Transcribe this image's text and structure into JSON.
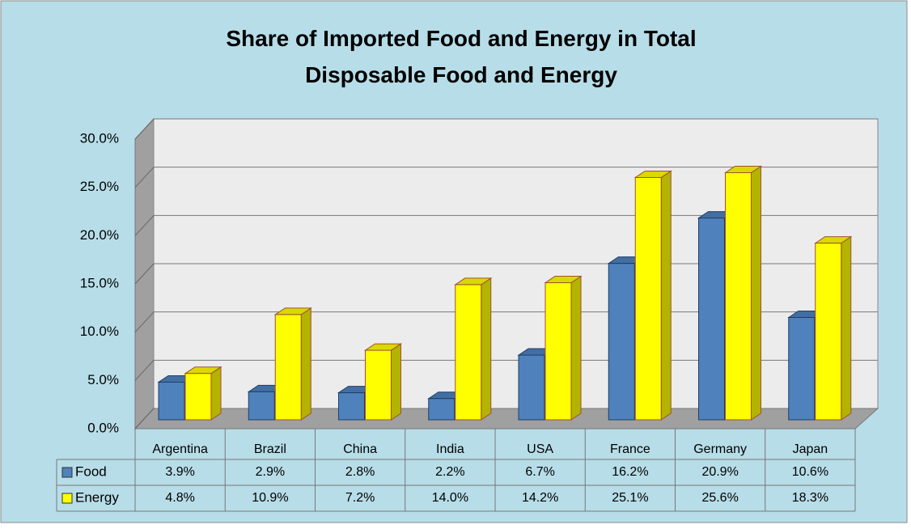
{
  "chart_data": {
    "type": "bar3d",
    "title": "Share of Imported Food and Energy in Total Disposable Food and Energy",
    "categories": [
      "Argentina",
      "Brazil",
      "China",
      "India",
      "USA",
      "France",
      "Germany",
      "Japan"
    ],
    "series": [
      {
        "name": "Food",
        "color": "#4f81bd",
        "values": [
          3.9,
          2.9,
          2.8,
          2.2,
          6.7,
          16.2,
          20.9,
          10.6
        ],
        "value_labels": [
          "3.9%",
          "2.9%",
          "2.8%",
          "2.2%",
          "6.7%",
          "16.2%",
          "20.9%",
          "10.6%"
        ]
      },
      {
        "name": "Energy",
        "color": "#ffff00",
        "values": [
          4.8,
          10.9,
          7.2,
          14.0,
          14.2,
          25.1,
          25.6,
          18.3
        ],
        "value_labels": [
          "4.8%",
          "10.9%",
          "7.2%",
          "14.0%",
          "14.2%",
          "25.1%",
          "25.6%",
          "18.3%"
        ]
      }
    ],
    "ylim": [
      0,
      30
    ],
    "yticks": [
      {
        "value": 0,
        "label": "0.0%"
      },
      {
        "value": 5,
        "label": "5.0%"
      },
      {
        "value": 10,
        "label": "10.0%"
      },
      {
        "value": 15,
        "label": "15.0%"
      },
      {
        "value": 20,
        "label": "20.0%"
      },
      {
        "value": 25,
        "label": "25.0%"
      },
      {
        "value": 30,
        "label": "30.0%"
      }
    ],
    "grid": true,
    "data_table": true
  }
}
